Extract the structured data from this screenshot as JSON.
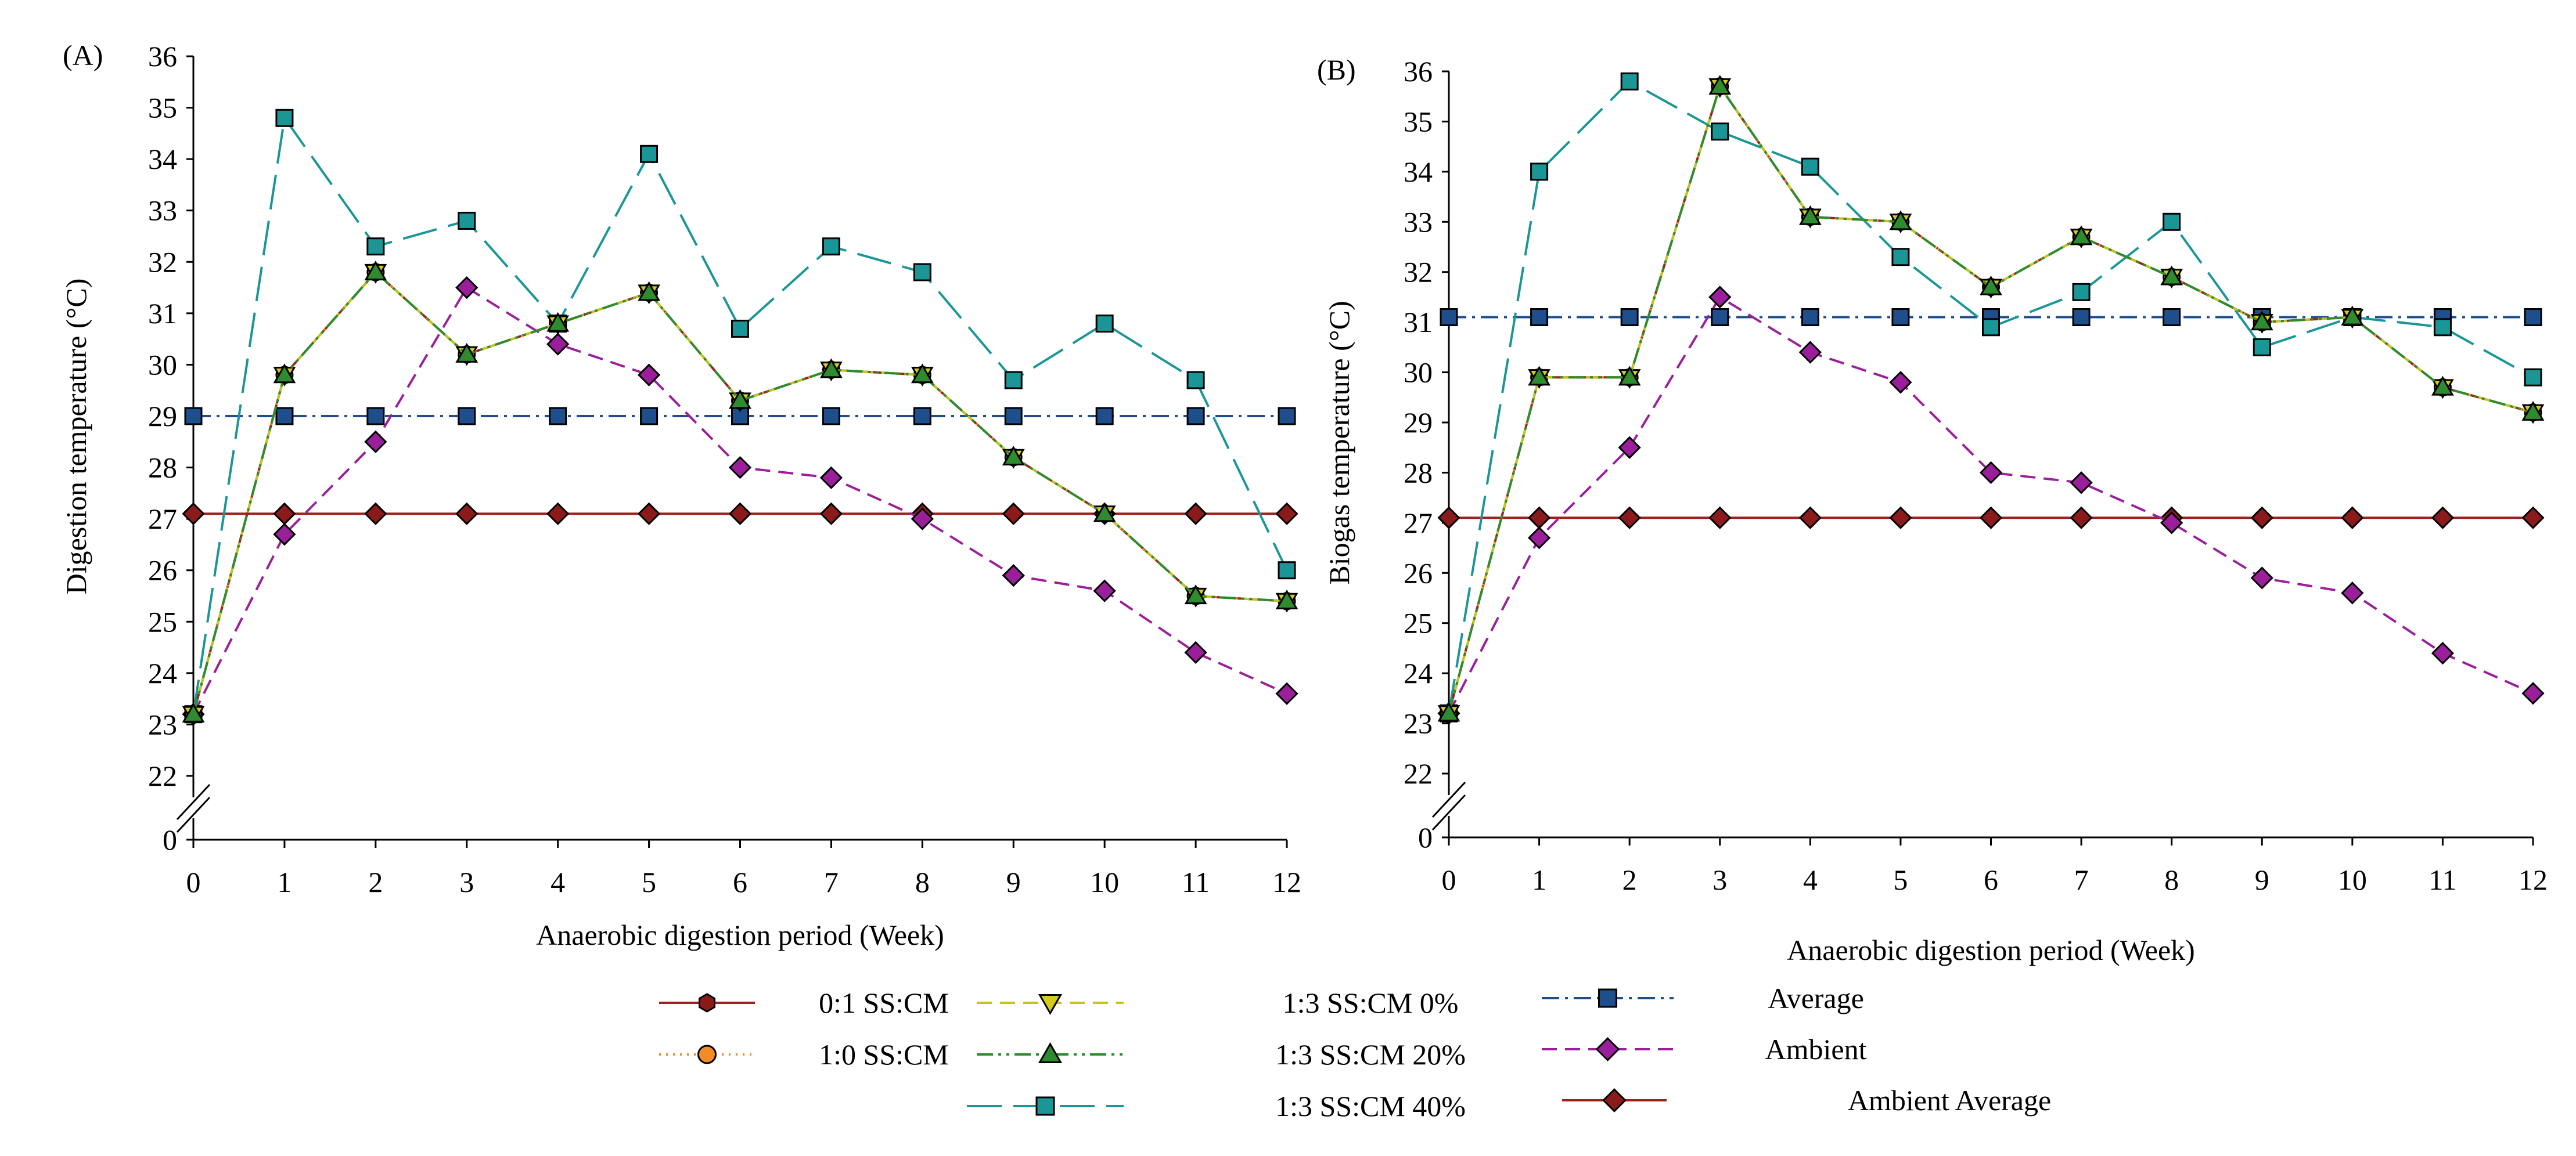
{
  "chart_data": [
    {
      "panel_label": "(A)",
      "type": "line",
      "xlabel": "Anaerobic digestion period (Week)",
      "ylabel": "Digestion temperature (°C)",
      "x": [
        0,
        1,
        2,
        3,
        4,
        5,
        6,
        7,
        8,
        9,
        10,
        11,
        12
      ],
      "xlim": [
        0,
        12
      ],
      "y_axis_break": true,
      "y_ticks": [
        "0",
        "22",
        "23",
        "24",
        "25",
        "26",
        "27",
        "28",
        "29",
        "30",
        "31",
        "32",
        "33",
        "34",
        "35",
        "36"
      ],
      "ylim": [
        22,
        36
      ],
      "series": [
        {
          "name": "0:1 SS:CM",
          "values": [
            23.2,
            29.8,
            31.8,
            30.2,
            30.8,
            31.4,
            29.3,
            29.9,
            29.8,
            28.2,
            27.1,
            25.5,
            25.4
          ]
        },
        {
          "name": "1:0 SS:CM",
          "values": [
            23.2,
            29.8,
            31.8,
            30.2,
            30.8,
            31.4,
            29.3,
            29.9,
            29.8,
            28.2,
            27.1,
            25.5,
            25.4
          ]
        },
        {
          "name": "1:3 SS:CM 0%",
          "values": [
            23.2,
            29.8,
            31.8,
            30.2,
            30.8,
            31.4,
            29.3,
            29.9,
            29.8,
            28.2,
            27.1,
            25.5,
            25.4
          ]
        },
        {
          "name": "1:3 SS:CM 20%",
          "values": [
            23.2,
            29.8,
            31.8,
            30.2,
            30.8,
            31.4,
            29.3,
            29.9,
            29.8,
            28.2,
            27.1,
            25.5,
            25.4
          ]
        },
        {
          "name": "1:3 SS:CM 40%",
          "values": [
            23.2,
            34.8,
            32.3,
            32.8,
            30.8,
            34.1,
            30.7,
            32.3,
            31.8,
            29.7,
            30.8,
            29.7,
            26.0
          ]
        },
        {
          "name": "Average",
          "values": [
            29.0,
            29.0,
            29.0,
            29.0,
            29.0,
            29.0,
            29.0,
            29.0,
            29.0,
            29.0,
            29.0,
            29.0,
            29.0
          ]
        },
        {
          "name": "Ambient",
          "values": [
            23.2,
            26.7,
            28.5,
            31.5,
            30.4,
            29.8,
            28.0,
            27.8,
            27.0,
            25.9,
            25.6,
            24.4,
            23.6
          ]
        },
        {
          "name": "Ambient Average",
          "values": [
            27.1,
            27.1,
            27.1,
            27.1,
            27.1,
            27.1,
            27.1,
            27.1,
            27.1,
            27.1,
            27.1,
            27.1,
            27.1
          ]
        }
      ]
    },
    {
      "panel_label": "(B)",
      "type": "line",
      "xlabel": "Anaerobic digestion period (Week)",
      "ylabel": "Biogas temperature (°C)",
      "x": [
        0,
        1,
        2,
        3,
        4,
        5,
        6,
        7,
        8,
        9,
        10,
        11,
        12
      ],
      "xlim": [
        0,
        12
      ],
      "y_axis_break": true,
      "y_ticks": [
        "0",
        "22",
        "23",
        "24",
        "25",
        "26",
        "27",
        "28",
        "29",
        "30",
        "31",
        "32",
        "33",
        "34",
        "35",
        "36"
      ],
      "ylim": [
        22,
        36
      ],
      "series": [
        {
          "name": "0:1 SS:CM",
          "values": [
            23.2,
            29.9,
            29.9,
            35.7,
            33.1,
            33.0,
            31.7,
            32.7,
            31.9,
            31.0,
            31.1,
            29.7,
            29.2
          ]
        },
        {
          "name": "1:0 SS:CM",
          "values": [
            23.2,
            29.9,
            29.9,
            35.7,
            33.1,
            33.0,
            31.7,
            32.7,
            31.9,
            31.0,
            31.1,
            29.7,
            29.2
          ]
        },
        {
          "name": "1:3 SS:CM 0%",
          "values": [
            23.2,
            29.9,
            29.9,
            35.7,
            33.1,
            33.0,
            31.7,
            32.7,
            31.9,
            31.0,
            31.1,
            29.7,
            29.2
          ]
        },
        {
          "name": "1:3 SS:CM 20%",
          "values": [
            23.2,
            29.9,
            29.9,
            35.7,
            33.1,
            33.0,
            31.7,
            32.7,
            31.9,
            31.0,
            31.1,
            29.7,
            29.2
          ]
        },
        {
          "name": "1:3 SS:CM 40%",
          "values": [
            23.2,
            34.0,
            35.8,
            34.8,
            34.1,
            32.3,
            30.9,
            31.6,
            33.0,
            30.5,
            31.1,
            30.9,
            29.9
          ]
        },
        {
          "name": "Average",
          "values": [
            31.1,
            31.1,
            31.1,
            31.1,
            31.1,
            31.1,
            31.1,
            31.1,
            31.1,
            31.1,
            31.1,
            31.1,
            31.1
          ]
        },
        {
          "name": "Ambient",
          "values": [
            23.2,
            26.7,
            28.5,
            31.5,
            30.4,
            29.8,
            28.0,
            27.8,
            27.0,
            25.9,
            25.6,
            24.4,
            23.6
          ]
        },
        {
          "name": "Ambient Average",
          "values": [
            27.1,
            27.1,
            27.1,
            27.1,
            27.1,
            27.1,
            27.1,
            27.1,
            27.1,
            27.1,
            27.1,
            27.1,
            27.1
          ]
        }
      ]
    }
  ],
  "styles": {
    "0:1 SS:CM": {
      "color": "#a02020",
      "marker": "hexagon",
      "marker_fill": "#8b1a1a",
      "dash": "solid"
    },
    "1:0 SS:CM": {
      "color": "#f28c28",
      "marker": "circle",
      "marker_fill": "#f28c28",
      "dash": "dotted"
    },
    "1:3 SS:CM 0%": {
      "color": "#c9c21a",
      "marker": "triangle-down",
      "marker_fill": "#d4cc1c",
      "dash": "dashed"
    },
    "1:3 SS:CM 20%": {
      "color": "#2e8b2e",
      "marker": "triangle-up",
      "marker_fill": "#2e8b2e",
      "dash": "dash-dot-dot"
    },
    "1:3 SS:CM 40%": {
      "color": "#1a9696",
      "marker": "square",
      "marker_fill": "#1a9696",
      "dash": "long-dash"
    },
    "Average": {
      "color": "#1f4e8c",
      "marker": "square",
      "marker_fill": "#1f4e8c",
      "dash": "dash-dot"
    },
    "Ambient": {
      "color": "#9b1f9b",
      "marker": "diamond",
      "marker_fill": "#9b1f9b",
      "dash": "dashed"
    },
    "Ambient Average": {
      "color": "#a02020",
      "marker": "diamond",
      "marker_fill": "#8b1a1a",
      "dash": "solid"
    }
  },
  "legend": {
    "entries": [
      "0:1 SS:CM",
      "1:0 SS:CM",
      "1:3 SS:CM 0%",
      "1:3 SS:CM 20%",
      "1:3 SS:CM 40%",
      "Average",
      "Ambient",
      "Ambient Average"
    ]
  }
}
